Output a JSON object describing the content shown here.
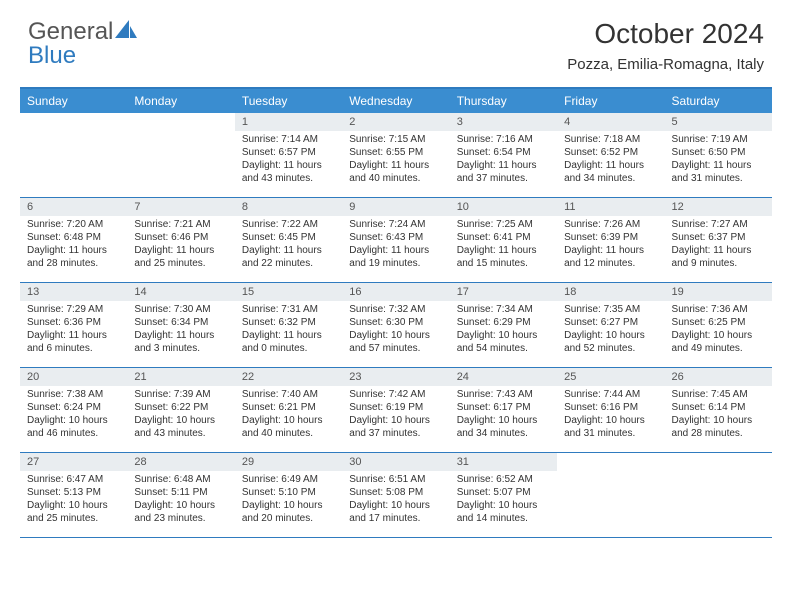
{
  "brand": {
    "part1": "General",
    "part2": "Blue"
  },
  "title": "October 2024",
  "location": "Pozza, Emilia-Romagna, Italy",
  "colors": {
    "header_bg": "#3a8dd0",
    "border": "#2f7bbf",
    "daynum_bg": "#e9edf0",
    "text": "#333333"
  },
  "dayHeaders": [
    "Sunday",
    "Monday",
    "Tuesday",
    "Wednesday",
    "Thursday",
    "Friday",
    "Saturday"
  ],
  "weeks": [
    [
      null,
      null,
      {
        "d": "1",
        "sr": "Sunrise: 7:14 AM",
        "ss": "Sunset: 6:57 PM",
        "dl1": "Daylight: 11 hours",
        "dl2": "and 43 minutes."
      },
      {
        "d": "2",
        "sr": "Sunrise: 7:15 AM",
        "ss": "Sunset: 6:55 PM",
        "dl1": "Daylight: 11 hours",
        "dl2": "and 40 minutes."
      },
      {
        "d": "3",
        "sr": "Sunrise: 7:16 AM",
        "ss": "Sunset: 6:54 PM",
        "dl1": "Daylight: 11 hours",
        "dl2": "and 37 minutes."
      },
      {
        "d": "4",
        "sr": "Sunrise: 7:18 AM",
        "ss": "Sunset: 6:52 PM",
        "dl1": "Daylight: 11 hours",
        "dl2": "and 34 minutes."
      },
      {
        "d": "5",
        "sr": "Sunrise: 7:19 AM",
        "ss": "Sunset: 6:50 PM",
        "dl1": "Daylight: 11 hours",
        "dl2": "and 31 minutes."
      }
    ],
    [
      {
        "d": "6",
        "sr": "Sunrise: 7:20 AM",
        "ss": "Sunset: 6:48 PM",
        "dl1": "Daylight: 11 hours",
        "dl2": "and 28 minutes."
      },
      {
        "d": "7",
        "sr": "Sunrise: 7:21 AM",
        "ss": "Sunset: 6:46 PM",
        "dl1": "Daylight: 11 hours",
        "dl2": "and 25 minutes."
      },
      {
        "d": "8",
        "sr": "Sunrise: 7:22 AM",
        "ss": "Sunset: 6:45 PM",
        "dl1": "Daylight: 11 hours",
        "dl2": "and 22 minutes."
      },
      {
        "d": "9",
        "sr": "Sunrise: 7:24 AM",
        "ss": "Sunset: 6:43 PM",
        "dl1": "Daylight: 11 hours",
        "dl2": "and 19 minutes."
      },
      {
        "d": "10",
        "sr": "Sunrise: 7:25 AM",
        "ss": "Sunset: 6:41 PM",
        "dl1": "Daylight: 11 hours",
        "dl2": "and 15 minutes."
      },
      {
        "d": "11",
        "sr": "Sunrise: 7:26 AM",
        "ss": "Sunset: 6:39 PM",
        "dl1": "Daylight: 11 hours",
        "dl2": "and 12 minutes."
      },
      {
        "d": "12",
        "sr": "Sunrise: 7:27 AM",
        "ss": "Sunset: 6:37 PM",
        "dl1": "Daylight: 11 hours",
        "dl2": "and 9 minutes."
      }
    ],
    [
      {
        "d": "13",
        "sr": "Sunrise: 7:29 AM",
        "ss": "Sunset: 6:36 PM",
        "dl1": "Daylight: 11 hours",
        "dl2": "and 6 minutes."
      },
      {
        "d": "14",
        "sr": "Sunrise: 7:30 AM",
        "ss": "Sunset: 6:34 PM",
        "dl1": "Daylight: 11 hours",
        "dl2": "and 3 minutes."
      },
      {
        "d": "15",
        "sr": "Sunrise: 7:31 AM",
        "ss": "Sunset: 6:32 PM",
        "dl1": "Daylight: 11 hours",
        "dl2": "and 0 minutes."
      },
      {
        "d": "16",
        "sr": "Sunrise: 7:32 AM",
        "ss": "Sunset: 6:30 PM",
        "dl1": "Daylight: 10 hours",
        "dl2": "and 57 minutes."
      },
      {
        "d": "17",
        "sr": "Sunrise: 7:34 AM",
        "ss": "Sunset: 6:29 PM",
        "dl1": "Daylight: 10 hours",
        "dl2": "and 54 minutes."
      },
      {
        "d": "18",
        "sr": "Sunrise: 7:35 AM",
        "ss": "Sunset: 6:27 PM",
        "dl1": "Daylight: 10 hours",
        "dl2": "and 52 minutes."
      },
      {
        "d": "19",
        "sr": "Sunrise: 7:36 AM",
        "ss": "Sunset: 6:25 PM",
        "dl1": "Daylight: 10 hours",
        "dl2": "and 49 minutes."
      }
    ],
    [
      {
        "d": "20",
        "sr": "Sunrise: 7:38 AM",
        "ss": "Sunset: 6:24 PM",
        "dl1": "Daylight: 10 hours",
        "dl2": "and 46 minutes."
      },
      {
        "d": "21",
        "sr": "Sunrise: 7:39 AM",
        "ss": "Sunset: 6:22 PM",
        "dl1": "Daylight: 10 hours",
        "dl2": "and 43 minutes."
      },
      {
        "d": "22",
        "sr": "Sunrise: 7:40 AM",
        "ss": "Sunset: 6:21 PM",
        "dl1": "Daylight: 10 hours",
        "dl2": "and 40 minutes."
      },
      {
        "d": "23",
        "sr": "Sunrise: 7:42 AM",
        "ss": "Sunset: 6:19 PM",
        "dl1": "Daylight: 10 hours",
        "dl2": "and 37 minutes."
      },
      {
        "d": "24",
        "sr": "Sunrise: 7:43 AM",
        "ss": "Sunset: 6:17 PM",
        "dl1": "Daylight: 10 hours",
        "dl2": "and 34 minutes."
      },
      {
        "d": "25",
        "sr": "Sunrise: 7:44 AM",
        "ss": "Sunset: 6:16 PM",
        "dl1": "Daylight: 10 hours",
        "dl2": "and 31 minutes."
      },
      {
        "d": "26",
        "sr": "Sunrise: 7:45 AM",
        "ss": "Sunset: 6:14 PM",
        "dl1": "Daylight: 10 hours",
        "dl2": "and 28 minutes."
      }
    ],
    [
      {
        "d": "27",
        "sr": "Sunrise: 6:47 AM",
        "ss": "Sunset: 5:13 PM",
        "dl1": "Daylight: 10 hours",
        "dl2": "and 25 minutes."
      },
      {
        "d": "28",
        "sr": "Sunrise: 6:48 AM",
        "ss": "Sunset: 5:11 PM",
        "dl1": "Daylight: 10 hours",
        "dl2": "and 23 minutes."
      },
      {
        "d": "29",
        "sr": "Sunrise: 6:49 AM",
        "ss": "Sunset: 5:10 PM",
        "dl1": "Daylight: 10 hours",
        "dl2": "and 20 minutes."
      },
      {
        "d": "30",
        "sr": "Sunrise: 6:51 AM",
        "ss": "Sunset: 5:08 PM",
        "dl1": "Daylight: 10 hours",
        "dl2": "and 17 minutes."
      },
      {
        "d": "31",
        "sr": "Sunrise: 6:52 AM",
        "ss": "Sunset: 5:07 PM",
        "dl1": "Daylight: 10 hours",
        "dl2": "and 14 minutes."
      },
      null,
      null
    ]
  ]
}
